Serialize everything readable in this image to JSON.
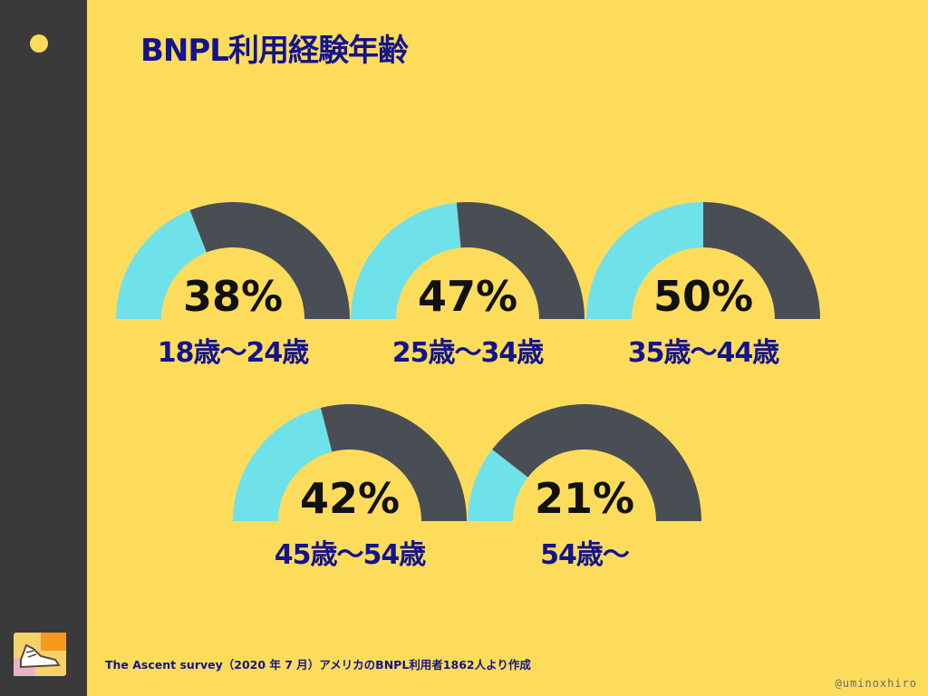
{
  "title": "BNPL利用経験年齢",
  "footer": {
    "source": "The Ascent survey（2020 年 7 月）アメリカのBNPL利用者1862人より作成",
    "handle": "@uminoxhiro"
  },
  "colors": {
    "background": "#fddc5c",
    "sidebar": "#3a3a3a",
    "filled": "#6ee2e8",
    "empty": "#494d54",
    "title": "#14148c",
    "value": "#111111"
  },
  "icons": [
    "sneaker-logo-icon"
  ],
  "chart_data": {
    "type": "gauge",
    "title": "BNPL利用経験年齢",
    "unit": "%",
    "categories": [
      "18歳〜24歳",
      "25歳〜34歳",
      "35歳〜44歳",
      "45歳〜54歳",
      "54歳〜"
    ],
    "values": [
      38,
      47,
      50,
      42,
      21
    ],
    "value_labels": [
      "38%",
      "47%",
      "50%",
      "42%",
      "21%"
    ],
    "range": [
      0,
      100
    ]
  }
}
